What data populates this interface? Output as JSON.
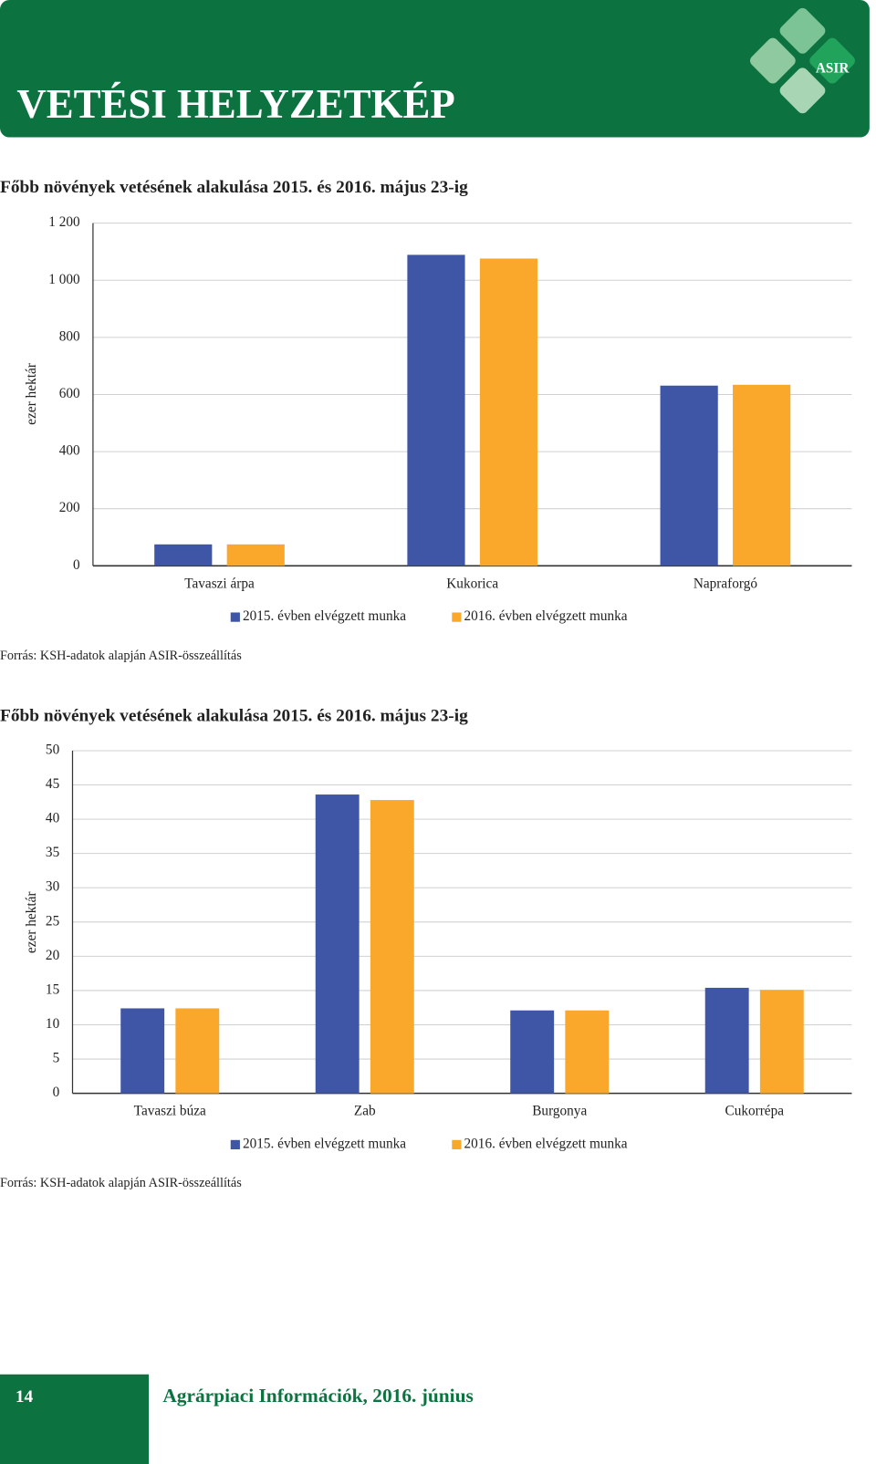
{
  "header": {
    "title": "VETÉSI HELYZETKÉP",
    "logo": "ASIR"
  },
  "chart_data": [
    {
      "type": "bar",
      "title": "Főbb növények vetésének alakulása 2015. és 2016. május 23-ig",
      "y_label": "ezer hektár",
      "categories": [
        "Tavaszi árpa",
        "Kukorica",
        "Napraforgó"
      ],
      "series": [
        {
          "name": "2015. évben elvégzett munka",
          "color": "#3f55a5",
          "values": [
            75,
            1089,
            631
          ]
        },
        {
          "name": "2016. évben elvégzett munka",
          "color": "#f9a82c",
          "values": [
            75,
            1076,
            634
          ]
        }
      ],
      "ylim": [
        0,
        1200
      ],
      "yticks": [
        0,
        200,
        400,
        600,
        800,
        {
          "value": 1000,
          "label": "1 000"
        },
        {
          "value": 1200,
          "label": "1 200"
        }
      ],
      "grid": true,
      "legend": "bottom",
      "source": "Forrás: KSH-adatok alapján ASIR-összeállítás"
    },
    {
      "type": "bar",
      "title": "Főbb növények vetésének alakulása 2015. és 2016. május 23-ig",
      "y_label": "ezer hektár",
      "categories": [
        "Tavaszi búza",
        "Zab",
        "Burgonya",
        "Cukorrépa"
      ],
      "series": [
        {
          "name": "2015. évben elvégzett munka",
          "color": "#3f55a5",
          "values": [
            12.4,
            43.6,
            12.1,
            15.4
          ]
        },
        {
          "name": "2016. évben elvégzett munka",
          "color": "#f9a82c",
          "values": [
            12.4,
            42.8,
            12.1,
            15.1
          ]
        }
      ],
      "ylim": [
        0,
        50
      ],
      "yticks": [
        0,
        5,
        10,
        15,
        20,
        25,
        30,
        35,
        40,
        45,
        50
      ],
      "grid": true,
      "legend": "bottom",
      "source": "Forrás: KSH-adatok alapján ASIR-összeállítás"
    }
  ],
  "footer": {
    "page": "14",
    "text": "Agrárpiaci Információk, 2016. június"
  }
}
